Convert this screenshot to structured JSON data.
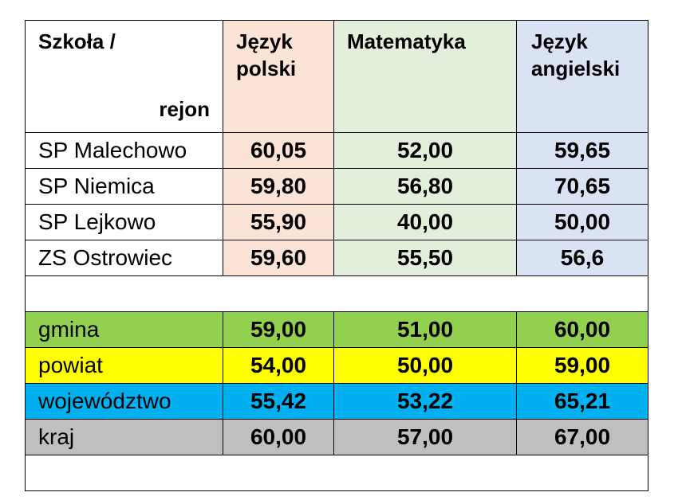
{
  "header": {
    "col0_line1": "Szkoła /",
    "col0_line2": "rejon",
    "col1_line1": "Język",
    "col1_line2": "polski",
    "col2": "Matematyka",
    "col3_line1": "Język",
    "col3_line2": "angielski"
  },
  "schools": [
    {
      "name": "SP Malechowo",
      "polski": "60,05",
      "matematyka": "52,00",
      "angielski": "59,65"
    },
    {
      "name": "SP Niemica",
      "polski": "59,80",
      "matematyka": "56,80",
      "angielski": "70,65"
    },
    {
      "name": "SP Lejkowo",
      "polski": "55,90",
      "matematyka": "40,00",
      "angielski": "50,00"
    },
    {
      "name": "ZS Ostrowiec",
      "polski": "59,60",
      "matematyka": "55,50",
      "angielski": "56,6"
    }
  ],
  "regions": [
    {
      "name": "gmina",
      "polski": "59,00",
      "matematyka": "51,00",
      "angielski": "60,00",
      "color": "#92d050"
    },
    {
      "name": "powiat",
      "polski": "54,00",
      "matematyka": "50,00",
      "angielski": "59,00",
      "color": "#ffff00"
    },
    {
      "name": "województwo",
      "polski": "55,42",
      "matematyka": "53,22",
      "angielski": "65,21",
      "color": "#00b0f0"
    },
    {
      "name": "kraj",
      "polski": "60,00",
      "matematyka": "57,00",
      "angielski": "67,00",
      "color": "#bfbfbf"
    }
  ],
  "colors": {
    "polski_header": "#fbe3d6",
    "matematyka_header": "#e2efda",
    "angielski_header": "#dae3f3"
  }
}
